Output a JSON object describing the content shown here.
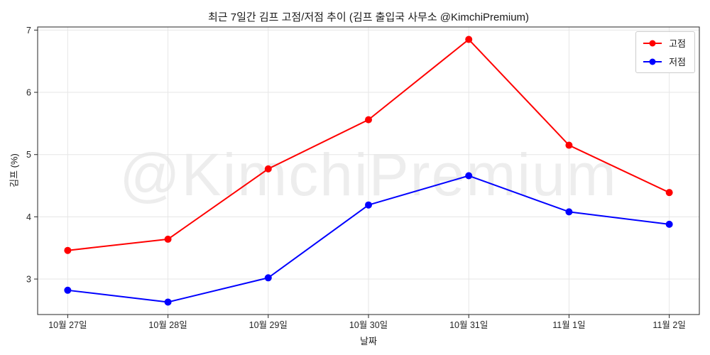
{
  "chart_data": {
    "type": "line",
    "title": "최근 7일간 김프 고점/저점 추이 (김프 출입국 사무소 @KimchiPremium)",
    "watermark": "@KimchiPremium",
    "xlabel": "날짜",
    "ylabel": "김프 (%)",
    "categories": [
      "10월 27일",
      "10월 28일",
      "10월 29일",
      "10월 30일",
      "10월 31일",
      "11월 1일",
      "11월 2일"
    ],
    "series": [
      {
        "name": "고점",
        "color": "#ff0000",
        "values": [
          3.46,
          3.64,
          4.77,
          5.56,
          6.85,
          5.15,
          4.39
        ]
      },
      {
        "name": "저점",
        "color": "#0000ff",
        "values": [
          2.82,
          2.63,
          3.02,
          4.19,
          4.66,
          4.08,
          3.88
        ]
      }
    ],
    "yticks": [
      3,
      4,
      5,
      6,
      7
    ],
    "ylim": [
      2.43,
      7.05
    ],
    "grid": true,
    "legend_position": "upper right",
    "grid_color": "#e6e6e6",
    "axis_color": "#262626"
  }
}
